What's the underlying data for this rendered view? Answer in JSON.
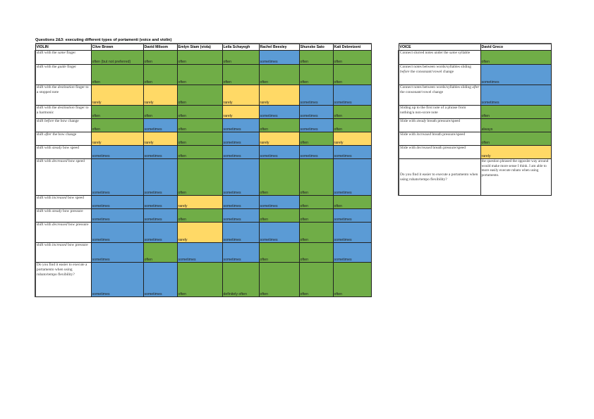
{
  "title": "Questions 2&3: executing different types of portamenti (voice and violin)",
  "colors": {
    "often": "#70ad47",
    "sometimes": "#5b9bd5",
    "rarely": "#ffd966",
    "always": "#70ad47",
    "definitely often": "#70ad47",
    "often (but not preferred)": "#70ad47"
  },
  "violin": {
    "header": [
      "VIOLIN",
      "Clive Brown",
      "David Milsom",
      "Emlyn Stam (viola)",
      "Leila Schayegh",
      "Rachel Beesley",
      "Shunske Sato",
      "Kati Debretzeni"
    ],
    "rows": [
      {
        "pre": "shift with the ",
        "em": "same",
        "post": " finger",
        "values": [
          "often (but not preferred)",
          "often",
          "often",
          "often",
          "sometimes",
          "often",
          "often"
        ]
      },
      {
        "pre": "shift with the ",
        "em": "guide",
        "post": " finger",
        "values": [
          "often",
          "often",
          "often",
          "often",
          "often",
          "often",
          "often"
        ]
      },
      {
        "pre": "shift with the ",
        "em": "destination",
        "post": " finger to a stopped note",
        "values": [
          "rarely",
          "rarely",
          "often",
          "rarely",
          "rarely",
          "sometimes",
          "sometimes"
        ]
      },
      {
        "pre": "shift with the ",
        "em": "destination",
        "post": " finger to a harmonic",
        "values": [
          "often",
          "often",
          "often",
          "rarely",
          "sometimes",
          "sometimes",
          "often"
        ]
      },
      {
        "pre": "shift ",
        "em": "before",
        "post": " the bow change",
        "values": [
          "often",
          "sometimes",
          "often",
          "sometimes",
          "often",
          "sometimes",
          "often"
        ]
      },
      {
        "pre": "shift ",
        "em": "after",
        "post": " the bow change",
        "values": [
          "rarely",
          "rarely",
          "often",
          "sometimes",
          "rarely",
          "often",
          "rarely"
        ]
      },
      {
        "pre": "shift with ",
        "em": "steady",
        "post": " bow speed",
        "values": [
          "sometimes",
          "sometimes",
          "often",
          "sometimes",
          "sometimes",
          "sometimes",
          "sometimes"
        ]
      },
      {
        "pre": "shift with ",
        "em": "decreased",
        "post": " bow speed",
        "values": [
          "sometimes",
          "sometimes",
          "often",
          "sometimes",
          "often",
          "often",
          "sometimes"
        ]
      },
      {
        "pre": "shift with ",
        "em": "increased",
        "post": " bow speed",
        "values": [
          "sometimes",
          "sometimes",
          "rarely",
          "sometimes",
          "sometimes",
          "often",
          "often"
        ]
      },
      {
        "pre": "shift with ",
        "em": "steady",
        "post": " bow pressure",
        "values": [
          "sometimes",
          "sometimes",
          "often",
          "sometimes",
          "often",
          "often",
          "sometimes"
        ]
      },
      {
        "pre": "shift with ",
        "em": "decreased",
        "post": " bow pressure",
        "values": [
          "sometimes",
          "sometimes",
          "rarely",
          "sometimes",
          "sometimes",
          "often",
          "sometimes"
        ]
      },
      {
        "pre": "shift with ",
        "em": "increased",
        "post": " bow pressure",
        "values": [
          "sometimes",
          "often",
          "sometimes",
          "sometimes",
          "often",
          "often",
          "sometimes"
        ]
      },
      {
        "pre": "Do you find it easier to execute a portamento when using rubato/tempo flexibility?",
        "em": "",
        "post": "",
        "values": [
          "sometimes",
          "sometimes",
          "often",
          "definitely often",
          "often",
          "often",
          "often"
        ]
      }
    ]
  },
  "voice": {
    "header": [
      "VOICE",
      "David Greco"
    ],
    "rows": [
      {
        "pre": "Connect slurred notes under the ",
        "em": "same",
        "post": " syllable",
        "value": "often"
      },
      {
        "pre": "Connect notes between words/syllables sliding ",
        "em": "before",
        "post": " the consonant/vowel change",
        "value": "sometimes"
      },
      {
        "pre": "Connect notes between words/syllables sliding ",
        "em": "after",
        "post": " the consonant/vowel change",
        "value": "sometimes"
      },
      {
        "pre": "Sliding up to the first note of a phrase from nothing/a non-score note",
        "em": "",
        "post": "",
        "value": "often"
      },
      {
        "pre": "Slide with ",
        "em": "steady",
        "post": " breath pressure/speed",
        "value": "always"
      },
      {
        "pre": "Slide with ",
        "em": "increased",
        "post": " breath pressure/speed",
        "value": "often"
      },
      {
        "pre": "Slide with ",
        "em": "decreased",
        "post": " breath pressure/speed",
        "value": "rarely"
      },
      {
        "pre": "Do you find it easier to execute a portamento when using rubato/tempo flexibility?",
        "em": "",
        "post": "",
        "value": "the question phrased the opposite way around would make more sense I think. I am able to more easily execute rubato when using portamento."
      }
    ]
  }
}
